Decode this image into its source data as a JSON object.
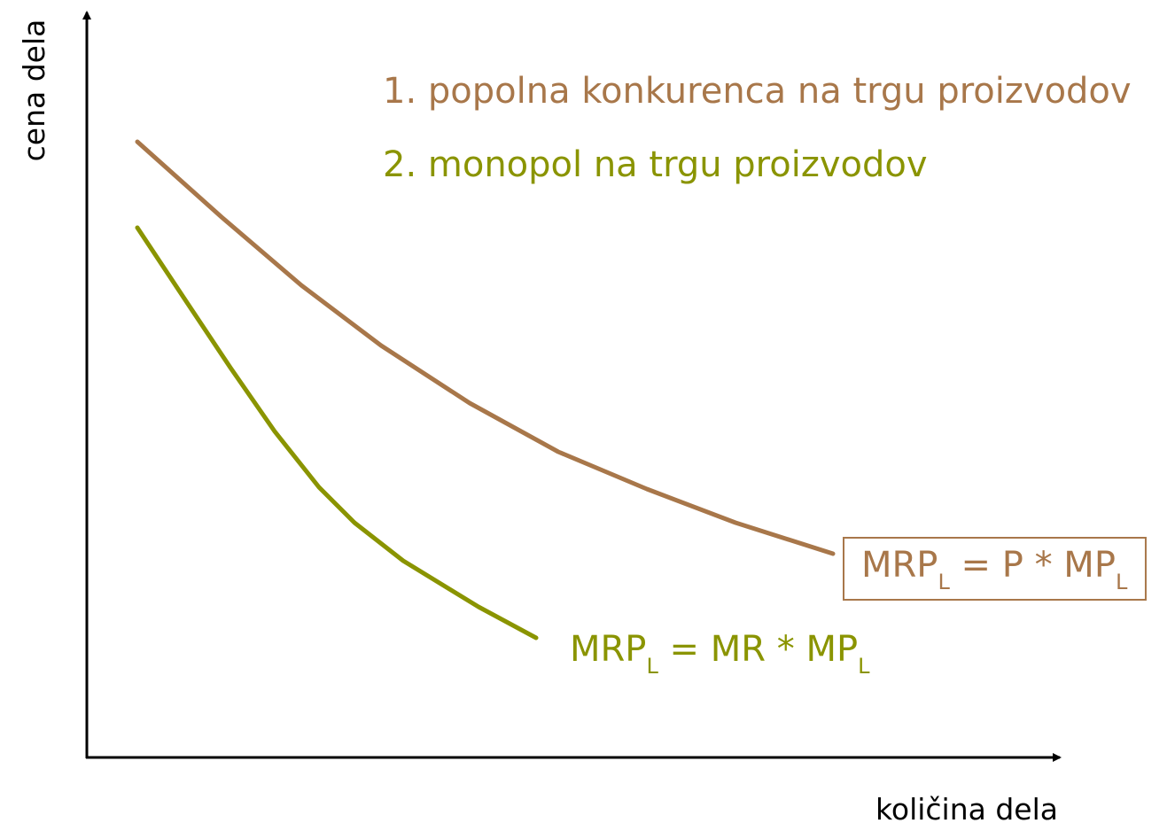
{
  "axes": {
    "y_label": "cena dela",
    "x_label": "količina dela"
  },
  "legend": [
    {
      "text": "1. popolna konkurenca na trgu proizvodov",
      "color": "#a8774a"
    },
    {
      "text": "2. monopol na trgu proizvodov",
      "color": "#8a9400"
    }
  ],
  "curves": [
    {
      "color": "#a8774a",
      "boxed": true,
      "label": [
        {
          "text": "MRP"
        },
        {
          "text": "L",
          "sub": true
        },
        {
          "text": " = P * MP"
        },
        {
          "text": "L",
          "sub": true
        }
      ]
    },
    {
      "color": "#8a9400",
      "boxed": false,
      "label": [
        {
          "text": "MRP"
        },
        {
          "text": "L",
          "sub": true
        },
        {
          "text": " = MR * MP"
        },
        {
          "text": "L",
          "sub": true
        }
      ]
    }
  ]
}
